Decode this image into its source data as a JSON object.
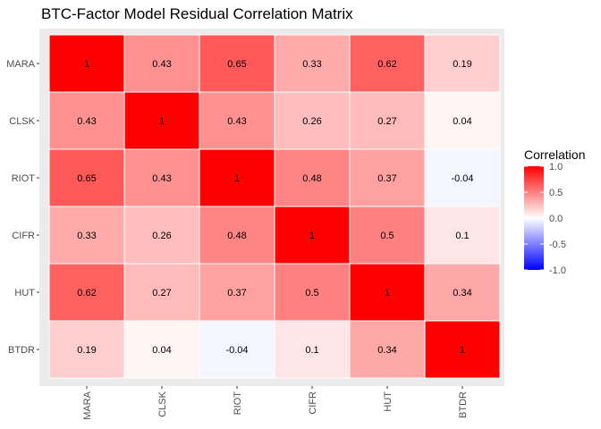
{
  "chart_data": {
    "type": "heatmap",
    "title": "BTC-Factor Model Residual Correlation Matrix",
    "rows": [
      "MARA",
      "CLSK",
      "RIOT",
      "CIFR",
      "HUT",
      "BTDR"
    ],
    "columns": [
      "MARA",
      "CLSK",
      "RIOT",
      "CIFR",
      "HUT",
      "BTDR"
    ],
    "values": [
      [
        1,
        0.43,
        0.65,
        0.33,
        0.62,
        0.19
      ],
      [
        0.43,
        1,
        0.43,
        0.26,
        0.27,
        0.04
      ],
      [
        0.65,
        0.43,
        1,
        0.48,
        0.37,
        -0.04
      ],
      [
        0.33,
        0.26,
        0.48,
        1,
        0.5,
        0.1
      ],
      [
        0.62,
        0.27,
        0.37,
        0.5,
        1,
        0.34
      ],
      [
        0.19,
        0.04,
        -0.04,
        0.1,
        0.34,
        1
      ]
    ],
    "legend": {
      "title": "Correlation",
      "position": "right",
      "range": [
        -1,
        1
      ],
      "ticks": [
        1.0,
        0.5,
        0.0,
        -0.5,
        -1.0
      ],
      "tick_labels": [
        "1.0",
        "0.5",
        "0.0",
        "-0.5",
        "-1.0"
      ],
      "low_color": "#0000ff",
      "mid_color": "#ffffff",
      "high_color": "#ff0000"
    },
    "panel_background": "#ebebeb",
    "grid": true
  }
}
